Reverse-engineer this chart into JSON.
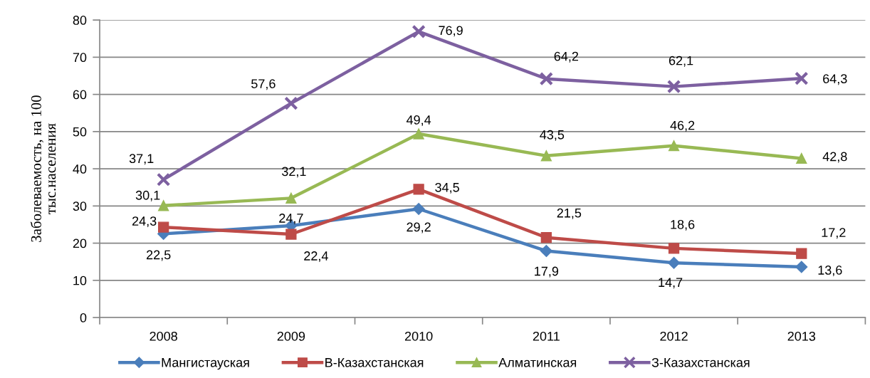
{
  "chart_data": {
    "type": "line",
    "categories": [
      "2008",
      "2009",
      "2010",
      "2011",
      "2012",
      "2013"
    ],
    "series": [
      {
        "name": "Мангистауская",
        "color": "#4a7ebb",
        "marker": "diamond",
        "values": [
          22.5,
          24.7,
          29.2,
          17.9,
          14.7,
          13.6
        ],
        "value_labels": [
          "22,5",
          "24,7",
          "29,2",
          "17,9",
          "14,7",
          "13,6"
        ]
      },
      {
        "name": "В-Казахстанская",
        "color": "#be4b48",
        "marker": "square",
        "values": [
          24.3,
          22.4,
          34.5,
          21.5,
          18.6,
          17.2
        ],
        "value_labels": [
          "24,3",
          "22,4",
          "34,5",
          "21,5",
          "18,6",
          "17,2"
        ]
      },
      {
        "name": "Алматинская",
        "color": "#98b954",
        "marker": "triangle",
        "values": [
          30.1,
          32.1,
          49.4,
          43.5,
          46.2,
          42.8
        ],
        "value_labels": [
          "30,1",
          "32,1",
          "49,4",
          "43,5",
          "46,2",
          "42,8"
        ]
      },
      {
        "name": "З-Казахстанская",
        "color": "#7d60a0",
        "marker": "cross",
        "values": [
          37.1,
          57.6,
          76.9,
          64.2,
          62.1,
          64.3
        ],
        "value_labels": [
          "37,1",
          "57,6",
          "76,9",
          "64,2",
          "62,1",
          "64,3"
        ]
      }
    ],
    "ylabel": "Заболеваемость, на 100\nтыс.населения",
    "ylim": [
      0,
      80
    ],
    "yticks": [
      0,
      10,
      20,
      30,
      40,
      50,
      60,
      70,
      80
    ],
    "grid": "y",
    "legend": "bottom",
    "line_style": "solid"
  }
}
